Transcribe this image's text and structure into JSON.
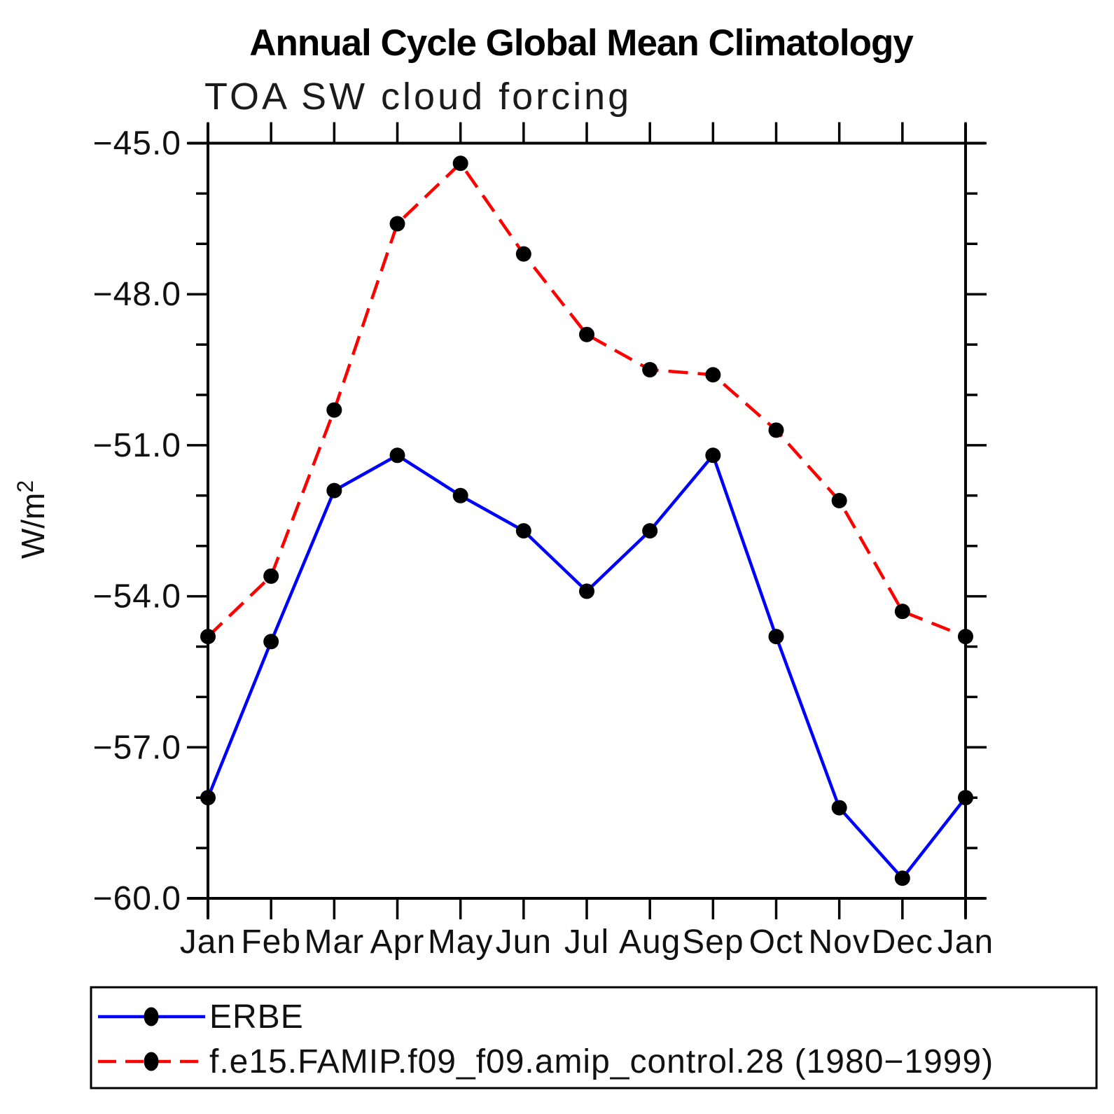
{
  "chart_data": {
    "type": "line",
    "title": "Annual Cycle Global Mean Climatology",
    "subtitle": "TOA SW cloud forcing",
    "ylabel": "W/m²",
    "xlabel": "",
    "categories": [
      "Jan",
      "Feb",
      "Mar",
      "Apr",
      "May",
      "Jun",
      "Jul",
      "Aug",
      "Sep",
      "Oct",
      "Nov",
      "Dec",
      "Jan"
    ],
    "ylim": [
      -60,
      -45
    ],
    "ytick_labels": [
      "−45.0",
      "−48.0",
      "−51.0",
      "−54.0",
      "−57.0",
      "−60.0"
    ],
    "ytick_interval_major": 3,
    "ytick_interval_minor": 1,
    "grid": false,
    "legend_position": "bottom",
    "marker": {
      "shape": "circle",
      "color": "#000000"
    },
    "series": [
      {
        "name": "ERBE",
        "color": "#0000ff",
        "line_style": "solid",
        "values": [
          -58.0,
          -54.9,
          -51.9,
          -51.2,
          -52.0,
          -52.7,
          -53.9,
          -52.7,
          -51.2,
          -54.8,
          -58.2,
          -59.6,
          -58.0
        ]
      },
      {
        "name": "f.e15.FAMIP.f09_f09.amip_control.28 (1980−1999)",
        "color": "#ff0000",
        "line_style": "dashed",
        "values": [
          -54.8,
          -53.6,
          -50.3,
          -46.6,
          -45.4,
          -47.2,
          -48.8,
          -49.5,
          -49.6,
          -50.7,
          -52.1,
          -54.3,
          -54.8
        ]
      }
    ]
  }
}
